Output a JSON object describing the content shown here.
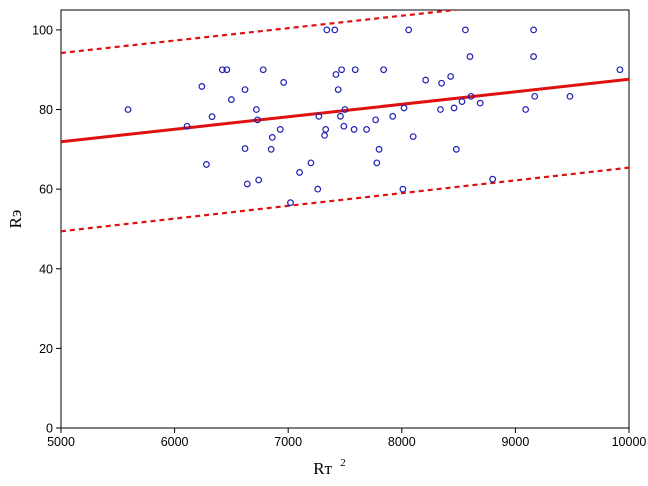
{
  "chart_data": {
    "type": "scatter",
    "title": "",
    "xlabel": "Rт",
    "xlabel_superscript": "2",
    "ylabel": "Rэ",
    "xlim": [
      5000,
      10000
    ],
    "ylim": [
      0,
      105
    ],
    "x_ticks": [
      5000,
      6000,
      7000,
      8000,
      9000,
      10000
    ],
    "y_ticks": [
      0,
      20,
      40,
      60,
      80,
      100
    ],
    "grid": false,
    "legend": "none",
    "colors": {
      "points": "#1f1fb4",
      "fit": "#e01010",
      "bands": "#e01010"
    },
    "points": [
      {
        "x": 5590,
        "y": 80
      },
      {
        "x": 6110,
        "y": 75.8
      },
      {
        "x": 6240,
        "y": 85.8
      },
      {
        "x": 6280,
        "y": 66.2
      },
      {
        "x": 6330,
        "y": 78.2
      },
      {
        "x": 6420,
        "y": 90
      },
      {
        "x": 6460,
        "y": 90
      },
      {
        "x": 6500,
        "y": 82.5
      },
      {
        "x": 6620,
        "y": 85
      },
      {
        "x": 6620,
        "y": 70.2
      },
      {
        "x": 6640,
        "y": 61.3
      },
      {
        "x": 6720,
        "y": 80
      },
      {
        "x": 6730,
        "y": 77.4
      },
      {
        "x": 6740,
        "y": 62.3
      },
      {
        "x": 6780,
        "y": 90
      },
      {
        "x": 6850,
        "y": 70
      },
      {
        "x": 6860,
        "y": 73
      },
      {
        "x": 6930,
        "y": 75
      },
      {
        "x": 6960,
        "y": 86.8
      },
      {
        "x": 7020,
        "y": 56.6
      },
      {
        "x": 7100,
        "y": 64.2
      },
      {
        "x": 7200,
        "y": 66.6
      },
      {
        "x": 7260,
        "y": 60
      },
      {
        "x": 7270,
        "y": 78.3
      },
      {
        "x": 7320,
        "y": 73.5
      },
      {
        "x": 7330,
        "y": 75
      },
      {
        "x": 7340,
        "y": 100
      },
      {
        "x": 7410,
        "y": 100
      },
      {
        "x": 7420,
        "y": 88.8
      },
      {
        "x": 7440,
        "y": 85
      },
      {
        "x": 7460,
        "y": 78.3
      },
      {
        "x": 7470,
        "y": 90
      },
      {
        "x": 7490,
        "y": 75.8
      },
      {
        "x": 7500,
        "y": 80
      },
      {
        "x": 7580,
        "y": 75
      },
      {
        "x": 7590,
        "y": 90
      },
      {
        "x": 7690,
        "y": 75
      },
      {
        "x": 7770,
        "y": 77.4
      },
      {
        "x": 7780,
        "y": 66.6
      },
      {
        "x": 7800,
        "y": 70
      },
      {
        "x": 7840,
        "y": 90
      },
      {
        "x": 7920,
        "y": 78.3
      },
      {
        "x": 8010,
        "y": 60
      },
      {
        "x": 8020,
        "y": 80.4
      },
      {
        "x": 8060,
        "y": 100
      },
      {
        "x": 8100,
        "y": 73.2
      },
      {
        "x": 8210,
        "y": 87.4
      },
      {
        "x": 8340,
        "y": 80
      },
      {
        "x": 8350,
        "y": 86.6
      },
      {
        "x": 8430,
        "y": 88.3
      },
      {
        "x": 8460,
        "y": 80.4
      },
      {
        "x": 8480,
        "y": 70
      },
      {
        "x": 8530,
        "y": 82
      },
      {
        "x": 8560,
        "y": 100
      },
      {
        "x": 8600,
        "y": 93.3
      },
      {
        "x": 8610,
        "y": 83.3
      },
      {
        "x": 8690,
        "y": 81.6
      },
      {
        "x": 8800,
        "y": 62.5
      },
      {
        "x": 9090,
        "y": 80
      },
      {
        "x": 9160,
        "y": 100
      },
      {
        "x": 9160,
        "y": 93.3
      },
      {
        "x": 9170,
        "y": 83.3
      },
      {
        "x": 9480,
        "y": 83.3
      },
      {
        "x": 9920,
        "y": 90
      }
    ],
    "fit_line": {
      "x": [
        5000,
        10000
      ],
      "y": [
        71.9,
        87.6
      ],
      "style": "solid"
    },
    "prediction_upper": {
      "x": [
        5000,
        10000
      ],
      "y": [
        94.2,
        109.8
      ],
      "style": "dashed"
    },
    "prediction_lower": {
      "x": [
        5000,
        10000
      ],
      "y": [
        49.4,
        65.4
      ],
      "style": "dashed"
    }
  }
}
